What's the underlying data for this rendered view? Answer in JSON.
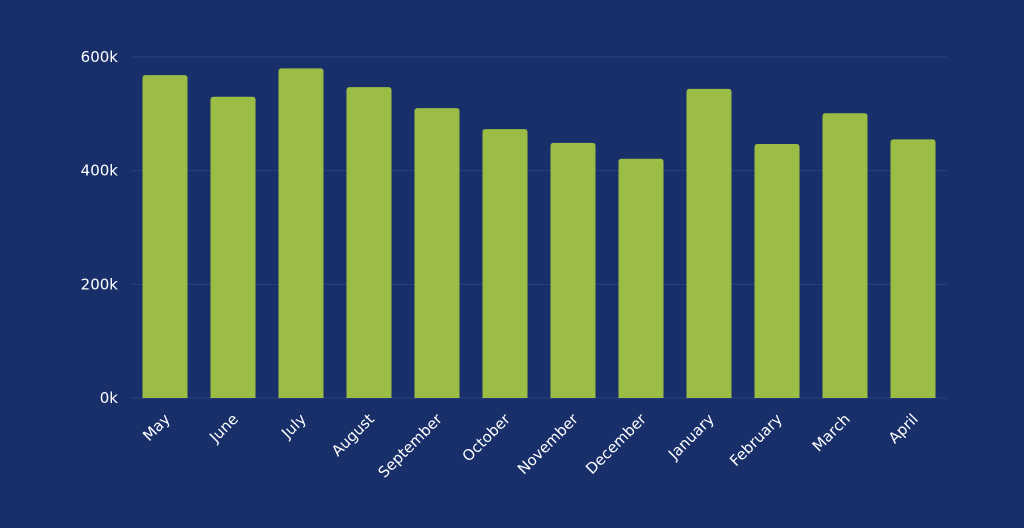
{
  "colors": {
    "background": "#182f69",
    "bar": "#9bbd45",
    "grid": "#2a4280",
    "text": "#ffffff"
  },
  "chart_data": {
    "type": "bar",
    "categories": [
      "May",
      "June",
      "July",
      "August",
      "September",
      "October",
      "November",
      "December",
      "January",
      "February",
      "March",
      "April"
    ],
    "values": [
      568000,
      530000,
      580000,
      547000,
      510000,
      473000,
      449000,
      421000,
      544000,
      447000,
      501000,
      455000
    ],
    "yticks": [
      0,
      200000,
      400000,
      600000
    ],
    "ytick_labels": [
      "0k",
      "200k",
      "400k",
      "600k"
    ],
    "ylim": [
      0,
      600000
    ],
    "grid": true,
    "legend": "none"
  }
}
